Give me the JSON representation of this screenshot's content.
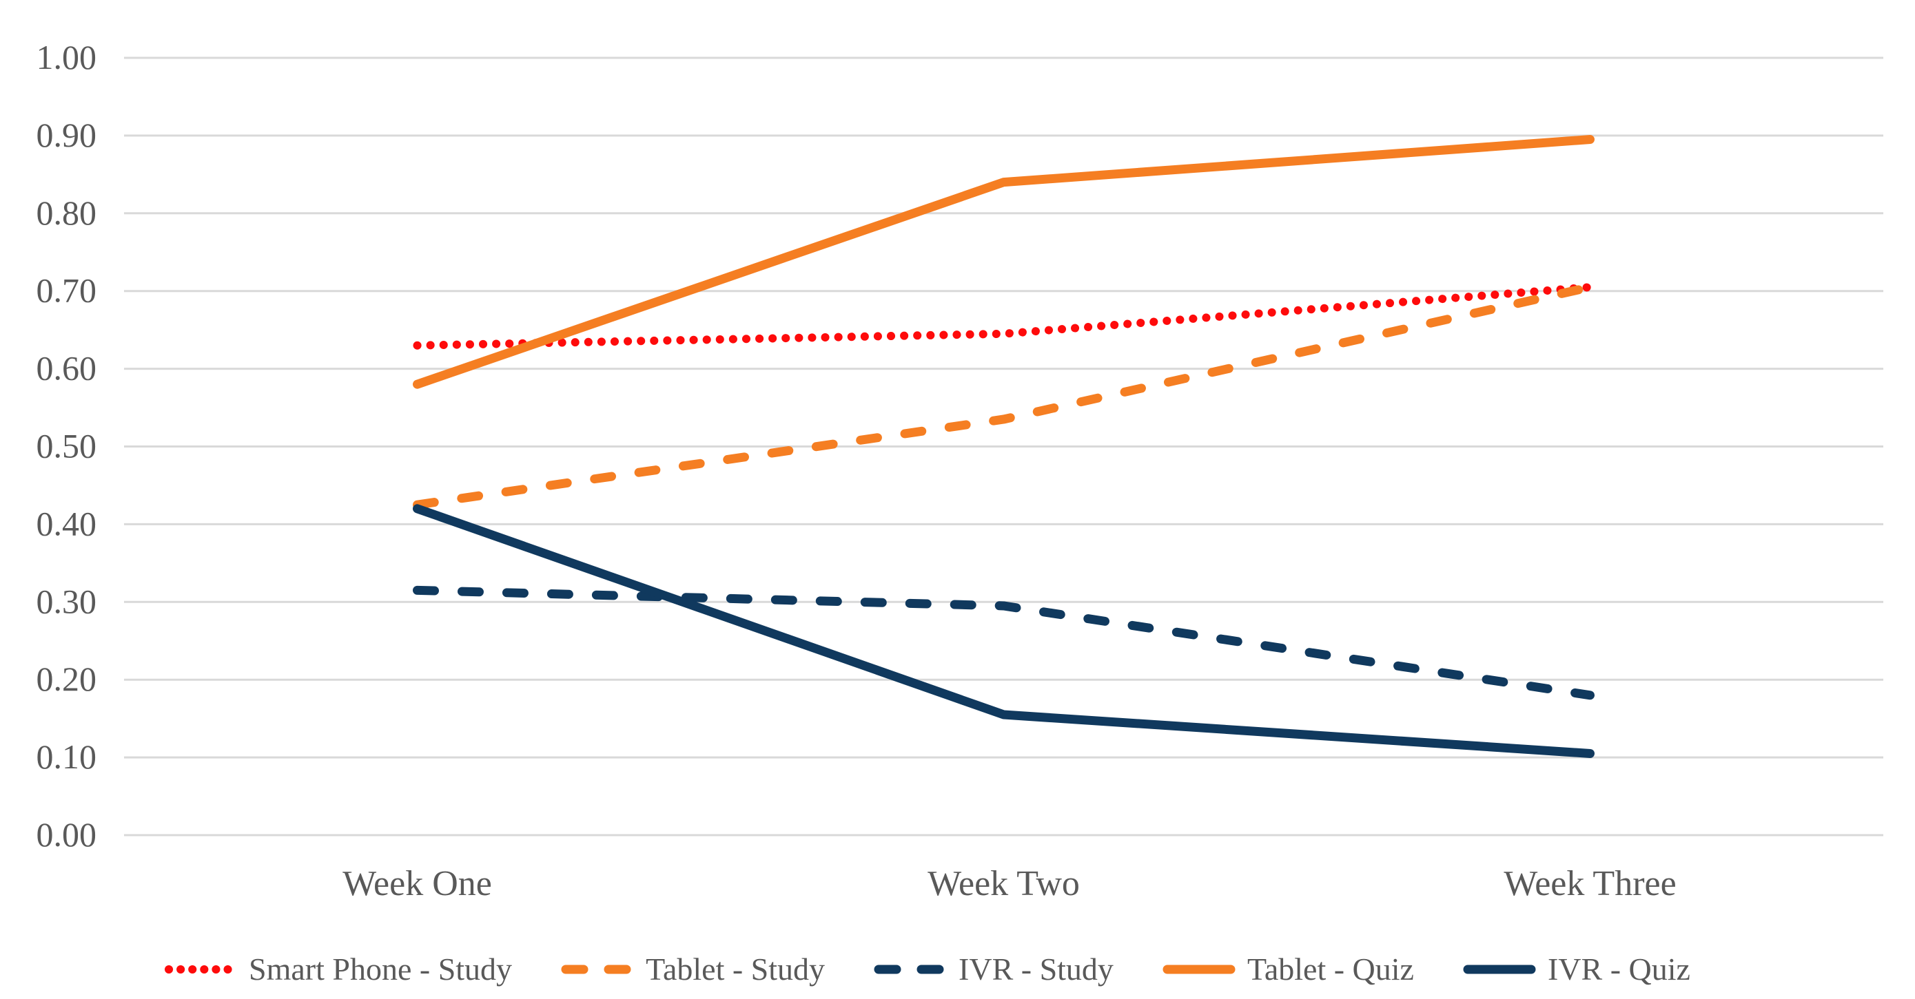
{
  "chart_data": {
    "type": "line",
    "title": "",
    "xlabel": "",
    "ylabel": "",
    "categories": [
      "Week One",
      "Week Two",
      "Week Three"
    ],
    "series": [
      {
        "name": "Smart Phone - Study",
        "values": [
          0.63,
          0.645,
          0.705
        ],
        "color": "#FE0B0B",
        "line_style": "dotted"
      },
      {
        "name": "Tablet - Study",
        "values": [
          0.425,
          0.535,
          0.705
        ],
        "color": "#F57E22",
        "line_style": "dashed"
      },
      {
        "name": "IVR - Study",
        "values": [
          0.315,
          0.295,
          0.18
        ],
        "color": "#10395E",
        "line_style": "dashed"
      },
      {
        "name": "Tablet - Quiz",
        "values": [
          0.58,
          0.84,
          0.895
        ],
        "color": "#F57E22",
        "line_style": "solid"
      },
      {
        "name": "IVR - Quiz",
        "values": [
          0.42,
          0.155,
          0.105
        ],
        "color": "#10395E",
        "line_style": "solid"
      }
    ],
    "ylim": [
      0.0,
      1.0
    ],
    "ytick_step": 0.1,
    "ytick_labels": [
      "0.00",
      "0.10",
      "0.20",
      "0.30",
      "0.40",
      "0.50",
      "0.60",
      "0.70",
      "0.80",
      "0.90",
      "1.00"
    ],
    "grid": true,
    "legend_position": "bottom",
    "axis_text_color": "#595959",
    "gridline_color": "#D9D9D9",
    "background_color": "#FFFFFF"
  }
}
